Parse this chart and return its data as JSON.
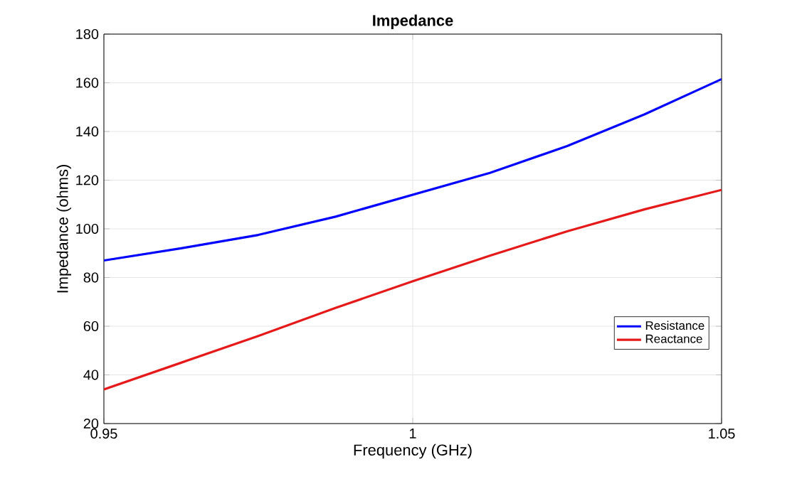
{
  "chart_data": {
    "type": "line",
    "title": "Impedance",
    "xlabel": "Frequency (GHz)",
    "ylabel": "Impedance (ohms)",
    "x": [
      0.95,
      0.9625,
      0.975,
      0.9875,
      1.0,
      1.0125,
      1.025,
      1.0375,
      1.05
    ],
    "series": [
      {
        "name": "Resistance",
        "color": "#0000ff",
        "values": [
          87,
          92,
          97.5,
          105,
          114,
          123,
          134,
          147,
          161.5
        ]
      },
      {
        "name": "Reactance",
        "color": "#e51919",
        "values": [
          34,
          45,
          56,
          67.5,
          78.5,
          89,
          99,
          108,
          116
        ]
      }
    ],
    "xlim": [
      0.95,
      1.05
    ],
    "xticks": [
      0.95,
      1,
      1.05
    ],
    "ylim": [
      20,
      180
    ],
    "yticks": [
      20,
      40,
      60,
      80,
      100,
      120,
      140,
      160,
      180
    ],
    "grid": true,
    "legend": "bottom right",
    "marker": "none",
    "line_style": "solid"
  }
}
